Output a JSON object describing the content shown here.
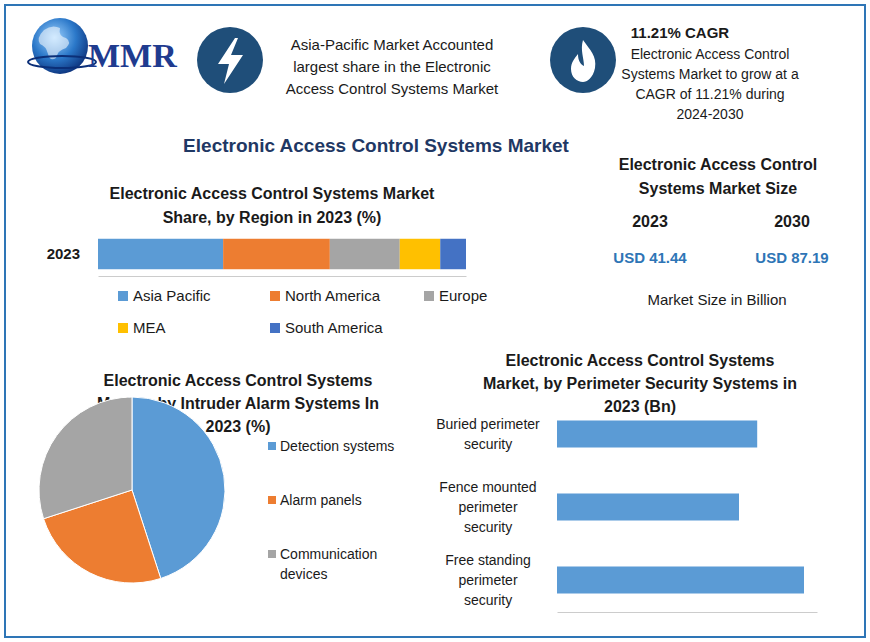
{
  "logo": {
    "text": "MMR"
  },
  "highlights": [
    {
      "text": "Asia-Pacific Market Accounted largest share in the Electronic Access Control Systems Market"
    },
    {
      "title": "11.21% CAGR",
      "text": "Electronic Access Control Systems Market to grow at a CAGR of 11.21% during 2024-2030"
    }
  ],
  "title": "Electronic Access Control Systems Market",
  "market_size": {
    "title": "Electronic Access Control Systems Market Size",
    "columns": [
      {
        "year": "2023",
        "value": "USD 41.44"
      },
      {
        "year": "2030",
        "value": "USD 87.19"
      }
    ],
    "note": "Market Size in Billion"
  },
  "chart_data": [
    {
      "type": "bar",
      "orientation": "horizontal",
      "stacked": true,
      "title": "Electronic Access Control Systems Market Share, by Region in 2023 (%)",
      "categories": [
        "2023"
      ],
      "series": [
        {
          "name": "Asia Pacific",
          "color": "#5b9bd5",
          "values": [
            34
          ]
        },
        {
          "name": "North America",
          "color": "#ed7d31",
          "values": [
            29
          ]
        },
        {
          "name": "Europe",
          "color": "#a5a5a5",
          "values": [
            19
          ]
        },
        {
          "name": "MEA",
          "color": "#ffc000",
          "values": [
            11
          ]
        },
        {
          "name": "South America",
          "color": "#4472c4",
          "values": [
            7
          ]
        }
      ],
      "xlim": [
        0,
        100
      ],
      "tick_labels": "y",
      "legend": "bottom"
    },
    {
      "type": "pie",
      "title": "Electronic Access Control Systems Market, by Intruder Alarm Systems In 2023 (%)",
      "categories": [
        "Detection systems",
        "Alarm panels",
        "Communication devices"
      ],
      "values": [
        45,
        25,
        30
      ],
      "colors": [
        "#5b9bd5",
        "#ed7d31",
        "#a5a5a5"
      ],
      "legend": "right"
    },
    {
      "type": "bar",
      "orientation": "horizontal",
      "title": "Electronic Access Control Systems Market, by Perimeter Security Systems in 2023 (Bn)",
      "categories": [
        "Buried perimeter security",
        "Fence mounted perimeter security",
        "Free standing perimeter security"
      ],
      "values": [
        7.7,
        7.0,
        9.5
      ],
      "color": "#5b9bd5",
      "xlim": [
        0,
        10
      ],
      "tick_labels": "y"
    }
  ]
}
